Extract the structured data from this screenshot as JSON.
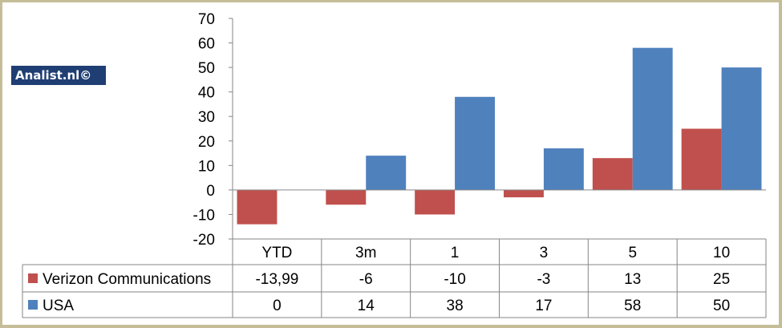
{
  "watermark": "Analist.nl©",
  "chart_data": {
    "type": "bar",
    "categories": [
      "YTD",
      "3m",
      "1",
      "3",
      "5",
      "10"
    ],
    "series": [
      {
        "name": "Verizon Communications",
        "values": [
          -13.99,
          -6,
          -10,
          -3,
          13,
          25
        ],
        "labels": [
          "-13,99",
          "-6",
          "-10",
          "-3",
          "13",
          "25"
        ],
        "color": "#c0504d"
      },
      {
        "name": "USA",
        "values": [
          0,
          14,
          38,
          17,
          58,
          50
        ],
        "labels": [
          "0",
          "14",
          "38",
          "17",
          "58",
          "50"
        ],
        "color": "#4f81bd"
      }
    ],
    "ylim": [
      -20,
      70
    ],
    "yticks": [
      70,
      60,
      50,
      40,
      30,
      20,
      10,
      0,
      -10,
      -20
    ],
    "grid": "none",
    "legend": "data-table"
  }
}
